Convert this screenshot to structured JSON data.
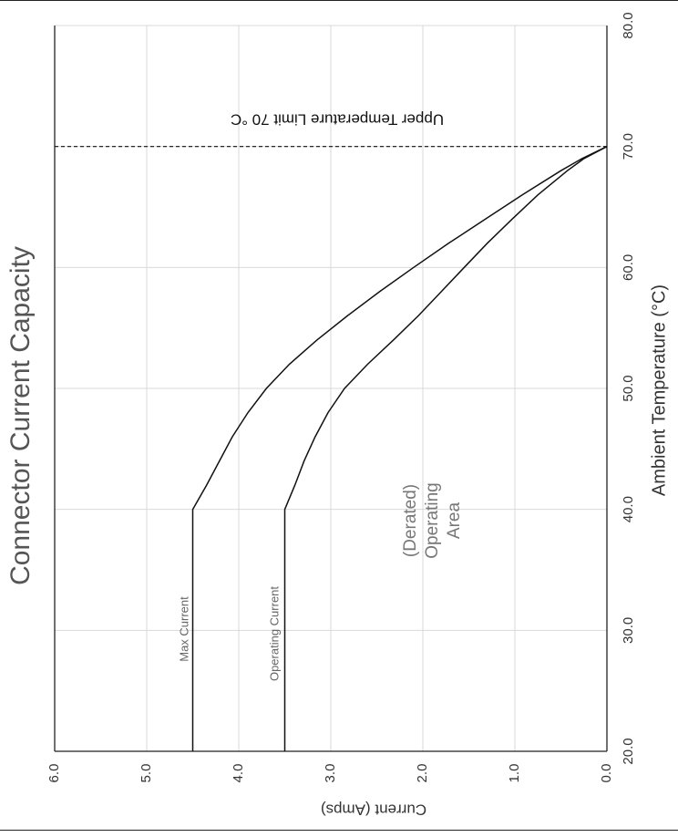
{
  "chart_data": {
    "type": "line",
    "title": "Connector Current Capacity",
    "xlabel": "Ambient Temperature (°C)",
    "ylabel": "Current (Amps)",
    "xlim": [
      20,
      80
    ],
    "ylim": [
      0,
      6
    ],
    "x_ticks": [
      "20.0",
      "30.0",
      "40.0",
      "50.0",
      "60.0",
      "70.0",
      "80.0"
    ],
    "y_ticks": [
      "0.0",
      "1.0",
      "2.0",
      "3.0",
      "4.0",
      "5.0",
      "6.0"
    ],
    "grid": true,
    "orientation": "rotated 90° clockwise",
    "series": [
      {
        "name": "Max Current",
        "x": [
          20,
          40,
          42,
          44,
          46,
          48,
          50,
          52,
          54,
          56,
          58,
          60,
          62,
          64,
          66,
          68,
          69,
          70
        ],
        "y": [
          4.5,
          4.5,
          4.35,
          4.21,
          4.07,
          3.9,
          3.7,
          3.45,
          3.15,
          2.82,
          2.47,
          2.1,
          1.72,
          1.32,
          0.92,
          0.5,
          0.27,
          0.0
        ]
      },
      {
        "name": "Operating Current",
        "x": [
          20,
          40,
          42,
          44,
          46,
          48,
          50,
          52,
          54,
          56,
          58,
          60,
          62,
          64,
          66,
          68,
          69,
          70
        ],
        "y": [
          3.5,
          3.5,
          3.39,
          3.29,
          3.17,
          3.03,
          2.85,
          2.6,
          2.32,
          2.05,
          1.8,
          1.55,
          1.3,
          1.03,
          0.75,
          0.43,
          0.25,
          0.0
        ]
      }
    ],
    "reference_line": {
      "x": 70,
      "label": "Upper Temperature Limit 70 °C"
    },
    "annotation": "(Derated)\nOperating\nArea"
  }
}
